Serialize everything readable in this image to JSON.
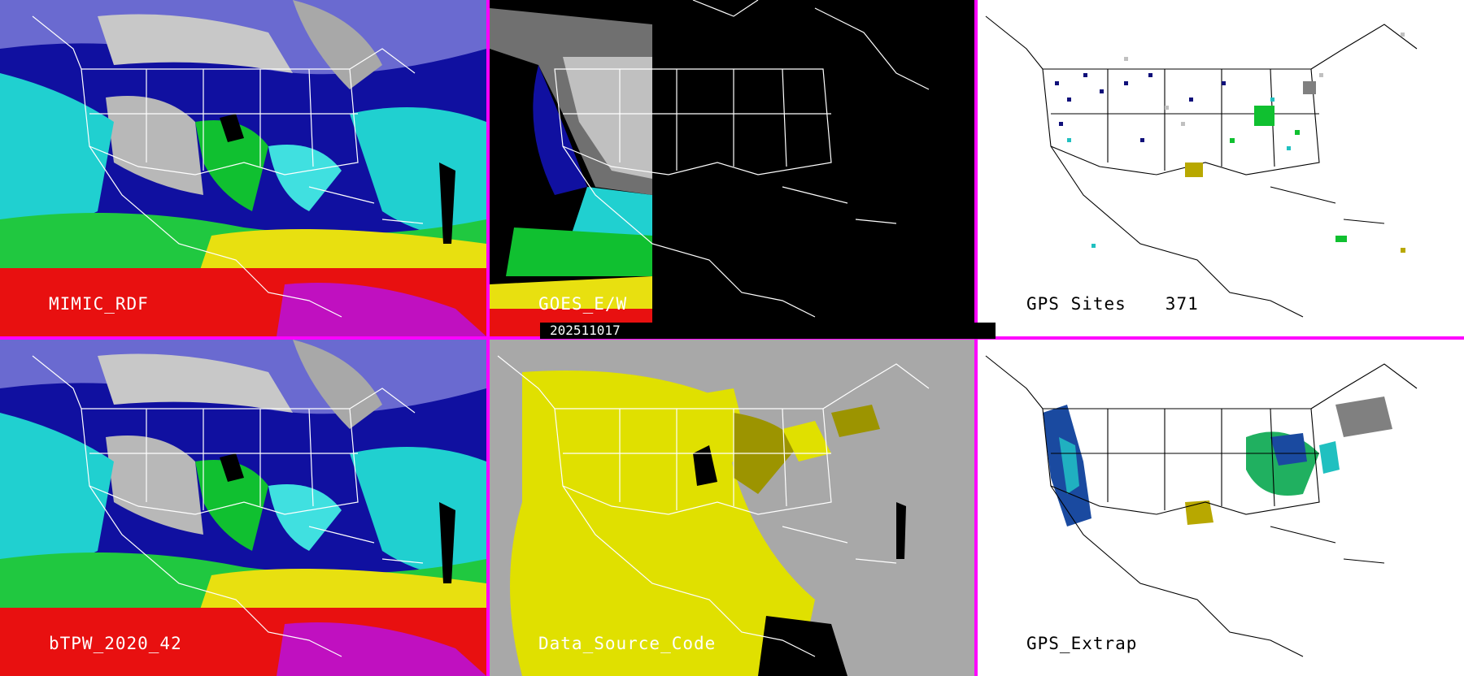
{
  "panels": [
    {
      "id": "p1",
      "label": "MIMIC_RDF"
    },
    {
      "id": "p2",
      "label": "GOES_E/W"
    },
    {
      "id": "p3",
      "label": "GPS Sites",
      "count": "371"
    },
    {
      "id": "p4",
      "label": "bTPW_2020_42"
    },
    {
      "id": "p5",
      "label": "Data_Source_Code"
    },
    {
      "id": "p6",
      "label": "GPS_Extrap"
    }
  ],
  "date_stamp": "202511017",
  "colors": {
    "divider": "#ff00ff",
    "tpw_grey": "#b8b8b8",
    "tpw_blue": "#1010a0",
    "tpw_cyan": "#20d8d8",
    "tpw_green": "#10c830",
    "tpw_yellow": "#e8e010",
    "tpw_red": "#e81010",
    "tpw_magenta": "#c010c0",
    "source_grey": "#a8a8a8",
    "source_yellow": "#e0e000",
    "source_olive": "#9c9400"
  }
}
